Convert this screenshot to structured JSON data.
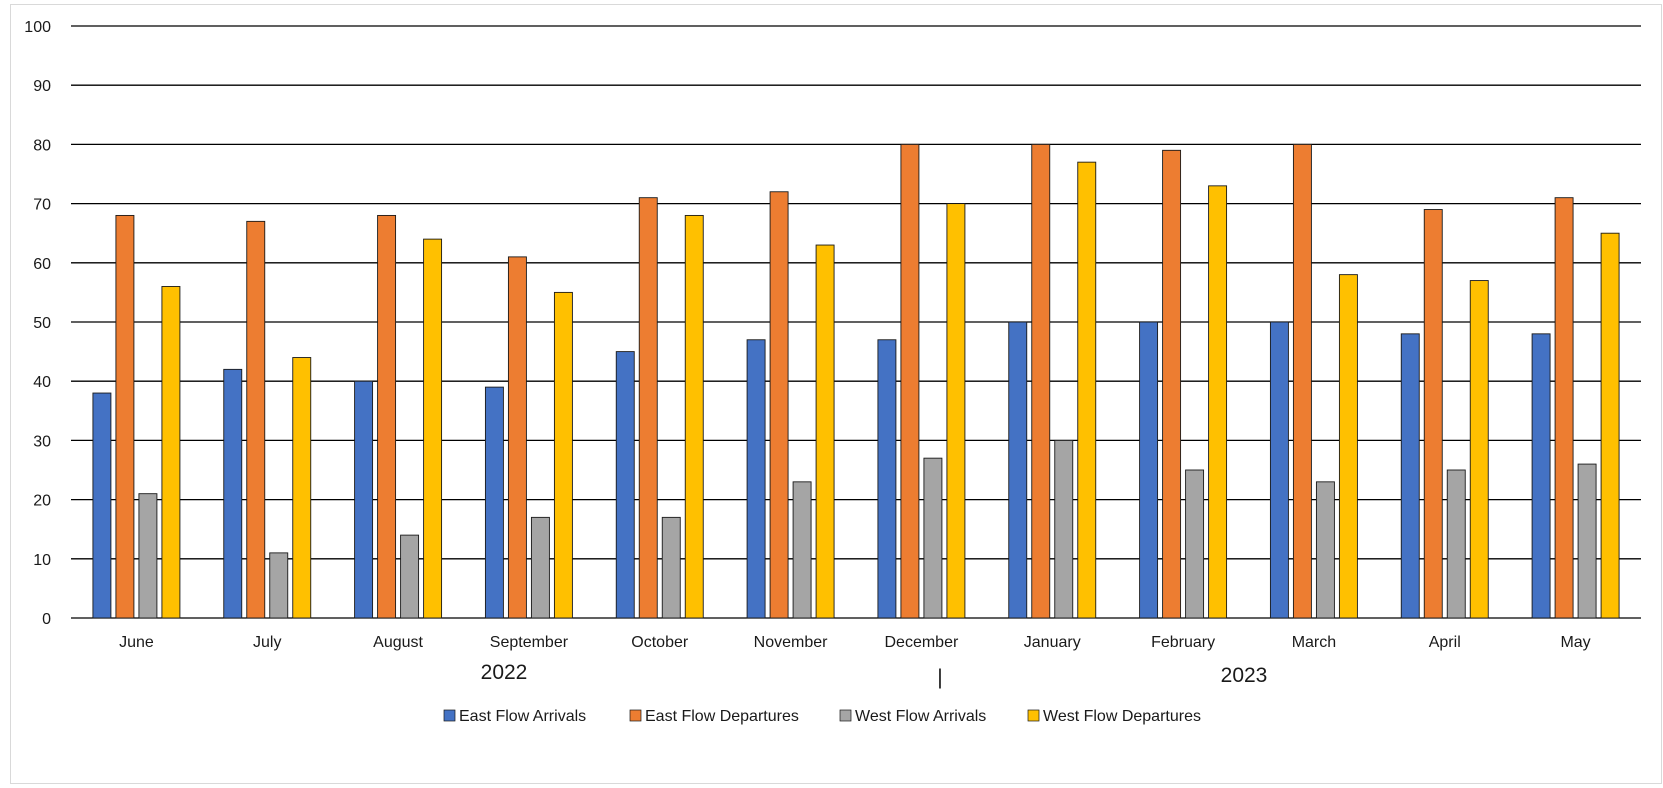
{
  "chart_data": {
    "type": "bar",
    "categories": [
      "June",
      "July",
      "August",
      "September",
      "October",
      "November",
      "December",
      "January",
      "February",
      "March",
      "April",
      "May"
    ],
    "year_groups": [
      {
        "label": "2022"
      },
      {
        "label": "2023"
      }
    ],
    "year_separator": "|",
    "series": [
      {
        "name": "East Flow Arrivals",
        "color": "#4472c4",
        "values": [
          38,
          42,
          40,
          39,
          45,
          47,
          47,
          50,
          50,
          50,
          48,
          48
        ]
      },
      {
        "name": "East Flow Departures",
        "color": "#ed7d31",
        "values": [
          68,
          67,
          68,
          61,
          71,
          72,
          80,
          80,
          79,
          80,
          69,
          71
        ]
      },
      {
        "name": "West Flow Arrivals",
        "color": "#a5a5a5",
        "values": [
          21,
          11,
          14,
          17,
          17,
          23,
          27,
          30,
          25,
          23,
          25,
          26
        ]
      },
      {
        "name": "West Flow Departures",
        "color": "#ffc000",
        "values": [
          56,
          44,
          64,
          55,
          68,
          63,
          70,
          77,
          73,
          58,
          57,
          65
        ]
      }
    ],
    "ylim": [
      0,
      100
    ],
    "yticks": [
      "0",
      "10",
      "20",
      "30",
      "40",
      "50",
      "60",
      "70",
      "80",
      "90",
      "100"
    ],
    "grid": true,
    "legend_position": "bottom"
  }
}
